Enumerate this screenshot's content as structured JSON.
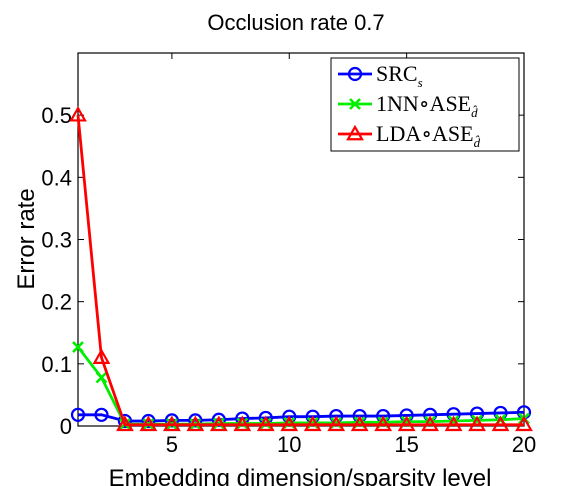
{
  "chart_data": {
    "type": "line",
    "title": "Occlusion rate 0.7",
    "xlabel": "Embedding dimension/sparsity level",
    "ylabel": "Error rate",
    "xlim": [
      1,
      20
    ],
    "ylim": [
      0,
      0.6
    ],
    "xticks": [
      5,
      10,
      15,
      20
    ],
    "yticks": [
      0,
      0.1,
      0.2,
      0.3,
      0.4,
      0.5
    ],
    "ytick_labels": [
      "0",
      "0.1",
      "0.2",
      "0.3",
      "0.4",
      "0.5"
    ],
    "grid": false,
    "legend_position": "top-right",
    "x": [
      1,
      2,
      3,
      4,
      5,
      6,
      7,
      8,
      9,
      10,
      11,
      12,
      13,
      14,
      15,
      16,
      17,
      18,
      19,
      20
    ],
    "series": [
      {
        "name": "SRC",
        "name_sub": "s",
        "color": "#0000ff",
        "marker": "circle",
        "values": [
          0.018,
          0.018,
          0.008,
          0.008,
          0.009,
          0.009,
          0.01,
          0.012,
          0.013,
          0.015,
          0.015,
          0.016,
          0.016,
          0.016,
          0.017,
          0.018,
          0.019,
          0.02,
          0.021,
          0.022
        ]
      },
      {
        "name": "1NN∘ASE",
        "name_sub": "d̂",
        "color": "#00ee00",
        "marker": "x",
        "values": [
          0.127,
          0.078,
          0.003,
          0.003,
          0.003,
          0.003,
          0.004,
          0.004,
          0.004,
          0.005,
          0.005,
          0.005,
          0.006,
          0.006,
          0.007,
          0.007,
          0.008,
          0.009,
          0.01,
          0.012
        ]
      },
      {
        "name": "LDA∘ASE",
        "name_sub": "d̂",
        "color": "#ff0000",
        "marker": "triangle",
        "values": [
          0.5,
          0.11,
          0.002,
          0.002,
          0.002,
          0.002,
          0.002,
          0.002,
          0.002,
          0.002,
          0.002,
          0.002,
          0.002,
          0.002,
          0.002,
          0.002,
          0.002,
          0.002,
          0.002,
          0.002
        ]
      }
    ]
  }
}
